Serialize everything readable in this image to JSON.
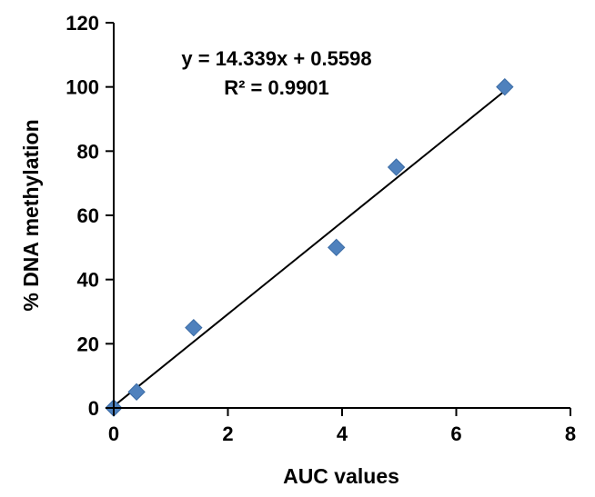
{
  "chart_data": {
    "type": "scatter",
    "xlabel": "AUC values",
    "ylabel": "% DNA methylation",
    "xlim": [
      0,
      8
    ],
    "ylim": [
      0,
      120
    ],
    "x_ticks": [
      "0",
      "2",
      "4",
      "6",
      "8"
    ],
    "y_ticks": [
      "0",
      "20",
      "40",
      "60",
      "80",
      "100",
      "120"
    ],
    "grid": false,
    "legend": "none",
    "marker": "diamond",
    "marker_color": "#4F81BD",
    "series": [
      {
        "points": [
          {
            "x": 0,
            "y": 0
          },
          {
            "x": 0.4,
            "y": 5
          },
          {
            "x": 1.4,
            "y": 25
          },
          {
            "x": 3.9,
            "y": 50
          },
          {
            "x": 4.95,
            "y": 75
          },
          {
            "x": 6.85,
            "y": 100
          }
        ]
      }
    ],
    "trendline": {
      "slope": 14.339,
      "intercept": 0.5598,
      "x_range": [
        0,
        6.85
      ],
      "color": "#000000"
    },
    "annotations": {
      "equation": "y = 14.339x + 0.5598",
      "r_squared": "R² = 0.9901"
    }
  }
}
